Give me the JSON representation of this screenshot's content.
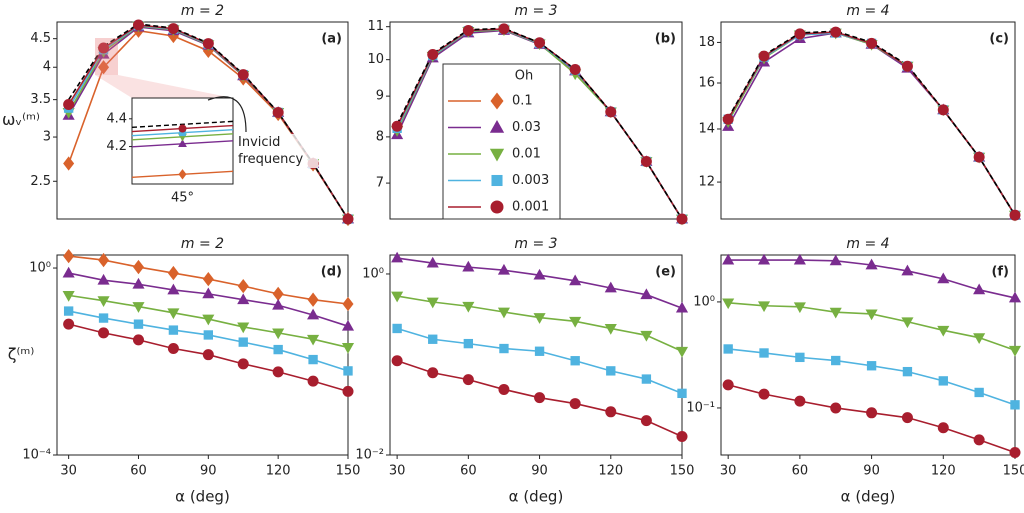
{
  "chart_data": [
    {
      "type": "line",
      "title": "m = 2",
      "panel_label": "(a)",
      "ylabel": "ωᵥ⁽ᵐ⁾",
      "log_y": true,
      "xlim": [
        25,
        150
      ],
      "ylim": [
        2.14,
        4.82
      ],
      "yticks": [
        2.5,
        3,
        3.5,
        4,
        4.5
      ],
      "x": [
        30,
        45,
        60,
        75,
        90,
        105,
        120,
        135,
        150
      ],
      "series": [
        {
          "color": "#d9622b",
          "marker": "diamond",
          "values": [
            2.69,
            4.0,
            4.65,
            4.55,
            4.28,
            3.82,
            3.3,
            2.68,
            2.14
          ]
        },
        {
          "color": "#7a2c8f",
          "marker": "triangle-up",
          "values": [
            3.28,
            4.22,
            4.72,
            4.65,
            4.38,
            3.86,
            3.32,
            2.69,
            2.14
          ]
        },
        {
          "color": "#77b041",
          "marker": "triangle-down",
          "values": [
            3.32,
            4.27,
            4.74,
            4.67,
            4.39,
            3.87,
            3.32,
            2.69,
            2.14
          ]
        },
        {
          "color": "#4fb3e0",
          "marker": "square",
          "values": [
            3.38,
            4.3,
            4.75,
            4.68,
            4.4,
            3.88,
            3.32,
            2.69,
            2.14
          ]
        },
        {
          "color": "#a81e2e",
          "marker": "circle",
          "values": [
            3.43,
            4.33,
            4.76,
            4.69,
            4.41,
            3.88,
            3.32,
            2.69,
            2.14
          ]
        }
      ],
      "inviscid": {
        "color": "#000000",
        "values": [
          3.5,
          4.36,
          4.78,
          4.7,
          4.42,
          3.89,
          3.32,
          2.69,
          2.14
        ]
      },
      "inset": {
        "ylim": [
          3.93,
          4.55
        ],
        "yticks": [
          4.2,
          4.4
        ],
        "xlabel": "45°"
      },
      "annotation": "Invicid frequency"
    },
    {
      "type": "line",
      "title": "m = 3",
      "panel_label": "(b)",
      "log_y": true,
      "xlim": [
        27,
        150
      ],
      "ylim": [
        6.31,
        11.15
      ],
      "yticks": [
        7,
        8,
        9,
        10,
        11
      ],
      "x": [
        30,
        45,
        60,
        75,
        90,
        105,
        120,
        135,
        150
      ],
      "series": [
        {
          "color": "#7a2c8f",
          "marker": "triangle-up",
          "values": [
            8.05,
            10.05,
            10.8,
            10.88,
            10.45,
            9.68,
            8.6,
            7.45,
            6.31
          ]
        },
        {
          "color": "#77b041",
          "marker": "triangle-down",
          "values": [
            8.15,
            10.1,
            10.85,
            10.9,
            10.47,
            9.6,
            8.6,
            7.45,
            6.31
          ]
        },
        {
          "color": "#4fb3e0",
          "marker": "square",
          "values": [
            8.2,
            10.12,
            10.87,
            10.92,
            10.48,
            9.7,
            8.6,
            7.45,
            6.31
          ]
        },
        {
          "color": "#a81e2e",
          "marker": "circle",
          "values": [
            8.25,
            10.15,
            10.88,
            10.93,
            10.5,
            9.72,
            8.6,
            7.45,
            6.31
          ]
        }
      ],
      "inviscid": {
        "color": "#000000",
        "values": [
          8.3,
          10.18,
          10.9,
          10.95,
          10.5,
          9.72,
          8.6,
          7.45,
          6.31
        ]
      },
      "legend": {
        "title": "Oh",
        "items": [
          {
            "name": "0.1",
            "color": "#d9622b",
            "marker": "diamond"
          },
          {
            "name": "0.03",
            "color": "#7a2c8f",
            "marker": "triangle-up"
          },
          {
            "name": "0.01",
            "color": "#77b041",
            "marker": "triangle-down"
          },
          {
            "name": "0.003",
            "color": "#4fb3e0",
            "marker": "square"
          },
          {
            "name": "0.001",
            "color": "#a81e2e",
            "marker": "circle"
          }
        ]
      }
    },
    {
      "type": "line",
      "title": "m = 4",
      "panel_label": "(c)",
      "log_y": true,
      "xlim": [
        27,
        150
      ],
      "ylim": [
        10.78,
        19.1
      ],
      "yticks": [
        12,
        14,
        16,
        18
      ],
      "x": [
        30,
        45,
        60,
        75,
        90,
        105,
        120,
        135,
        150
      ],
      "series": [
        {
          "color": "#7a2c8f",
          "marker": "triangle-up",
          "values": [
            14.1,
            17.0,
            18.2,
            18.5,
            17.9,
            16.7,
            14.8,
            12.9,
            10.9
          ]
        },
        {
          "color": "#77b041",
          "marker": "triangle-down",
          "values": [
            14.3,
            17.2,
            18.4,
            18.5,
            17.9,
            16.8,
            14.8,
            12.9,
            10.9
          ]
        },
        {
          "color": "#4fb3e0",
          "marker": "square",
          "values": [
            14.4,
            17.25,
            18.4,
            18.5,
            17.95,
            16.8,
            14.8,
            12.9,
            10.9
          ]
        },
        {
          "color": "#a81e2e",
          "marker": "circle",
          "values": [
            14.4,
            17.3,
            18.45,
            18.55,
            17.95,
            16.8,
            14.8,
            12.9,
            10.9
          ]
        }
      ],
      "inviscid": {
        "color": "#000000",
        "values": [
          14.45,
          17.35,
          18.5,
          18.6,
          18.0,
          16.85,
          14.8,
          12.9,
          10.9
        ]
      }
    },
    {
      "type": "line",
      "title": "m = 2",
      "panel_label": "(d)",
      "ylabel": "ζ⁽ᵐ⁾",
      "xlabel": "α (deg)",
      "log_y": true,
      "xlim": [
        25,
        150
      ],
      "ylim": [
        0.0001,
        1.9
      ],
      "yticks": [
        {
          "value": 0.0001,
          "label": "10⁻⁴"
        },
        {
          "value": 1,
          "label": "10⁰"
        }
      ],
      "xticks": [
        30,
        60,
        90,
        120,
        150
      ],
      "x": [
        30,
        45,
        60,
        75,
        90,
        105,
        120,
        135,
        150
      ],
      "series": [
        {
          "color": "#d9622b",
          "marker": "diamond",
          "values": [
            1.8,
            1.48,
            1.05,
            0.78,
            0.58,
            0.41,
            0.28,
            0.21,
            0.17
          ]
        },
        {
          "color": "#7a2c8f",
          "marker": "triangle-up",
          "values": [
            0.78,
            0.55,
            0.45,
            0.34,
            0.28,
            0.21,
            0.16,
            0.099,
            0.057
          ]
        },
        {
          "color": "#77b041",
          "marker": "triangle-down",
          "values": [
            0.26,
            0.2,
            0.15,
            0.11,
            0.081,
            0.055,
            0.041,
            0.03,
            0.02
          ]
        },
        {
          "color": "#4fb3e0",
          "marker": "square",
          "values": [
            0.12,
            0.085,
            0.063,
            0.047,
            0.037,
            0.026,
            0.018,
            0.011,
            0.0063
          ]
        },
        {
          "color": "#a81e2e",
          "marker": "circle",
          "values": [
            0.063,
            0.041,
            0.029,
            0.019,
            0.014,
            0.0089,
            0.006,
            0.0038,
            0.0023
          ]
        }
      ]
    },
    {
      "type": "line",
      "title": "m = 3",
      "panel_label": "(e)",
      "xlabel": "α (deg)",
      "log_y": true,
      "xlim": [
        27,
        150
      ],
      "ylim": [
        0.01,
        1.62
      ],
      "yticks": [
        {
          "value": 0.01,
          "label": "10⁻²"
        },
        {
          "value": 1,
          "label": "10⁰"
        }
      ],
      "xticks": [
        30,
        60,
        90,
        120,
        150
      ],
      "x": [
        30,
        45,
        60,
        75,
        90,
        105,
        120,
        135,
        150
      ],
      "series": [
        {
          "color": "#7a2c8f",
          "marker": "triangle-up",
          "values": [
            1.5,
            1.32,
            1.19,
            1.1,
            0.97,
            0.84,
            0.7,
            0.59,
            0.42
          ]
        },
        {
          "color": "#77b041",
          "marker": "triangle-down",
          "values": [
            0.57,
            0.49,
            0.44,
            0.38,
            0.33,
            0.3,
            0.25,
            0.21,
            0.14
          ]
        },
        {
          "color": "#4fb3e0",
          "marker": "square",
          "values": [
            0.25,
            0.19,
            0.17,
            0.15,
            0.14,
            0.11,
            0.085,
            0.069,
            0.048
          ]
        },
        {
          "color": "#a81e2e",
          "marker": "circle",
          "values": [
            0.11,
            0.081,
            0.068,
            0.053,
            0.043,
            0.037,
            0.03,
            0.024,
            0.016
          ]
        }
      ]
    },
    {
      "type": "line",
      "title": "m = 4",
      "panel_label": "(f)",
      "xlabel": "α (deg)",
      "log_y": true,
      "xlim": [
        27,
        150
      ],
      "ylim": [
        0.036,
        2.77
      ],
      "yticks": [
        {
          "value": 0.1,
          "label": "10⁻¹"
        },
        {
          "value": 1,
          "label": "10⁰"
        }
      ],
      "xticks": [
        30,
        60,
        90,
        120,
        150
      ],
      "x": [
        30,
        45,
        60,
        75,
        90,
        105,
        120,
        135,
        150
      ],
      "series": [
        {
          "color": "#7a2c8f",
          "marker": "triangle-up",
          "values": [
            2.48,
            2.48,
            2.48,
            2.44,
            2.23,
            1.96,
            1.65,
            1.3,
            1.09
          ]
        },
        {
          "color": "#77b041",
          "marker": "triangle-down",
          "values": [
            0.98,
            0.92,
            0.9,
            0.8,
            0.77,
            0.65,
            0.54,
            0.46,
            0.35
          ]
        },
        {
          "color": "#4fb3e0",
          "marker": "square",
          "values": [
            0.36,
            0.33,
            0.3,
            0.28,
            0.25,
            0.22,
            0.18,
            0.14,
            0.107
          ]
        },
        {
          "color": "#a81e2e",
          "marker": "circle",
          "values": [
            0.165,
            0.135,
            0.116,
            0.1,
            0.09,
            0.081,
            0.065,
            0.05,
            0.038
          ]
        }
      ]
    }
  ]
}
